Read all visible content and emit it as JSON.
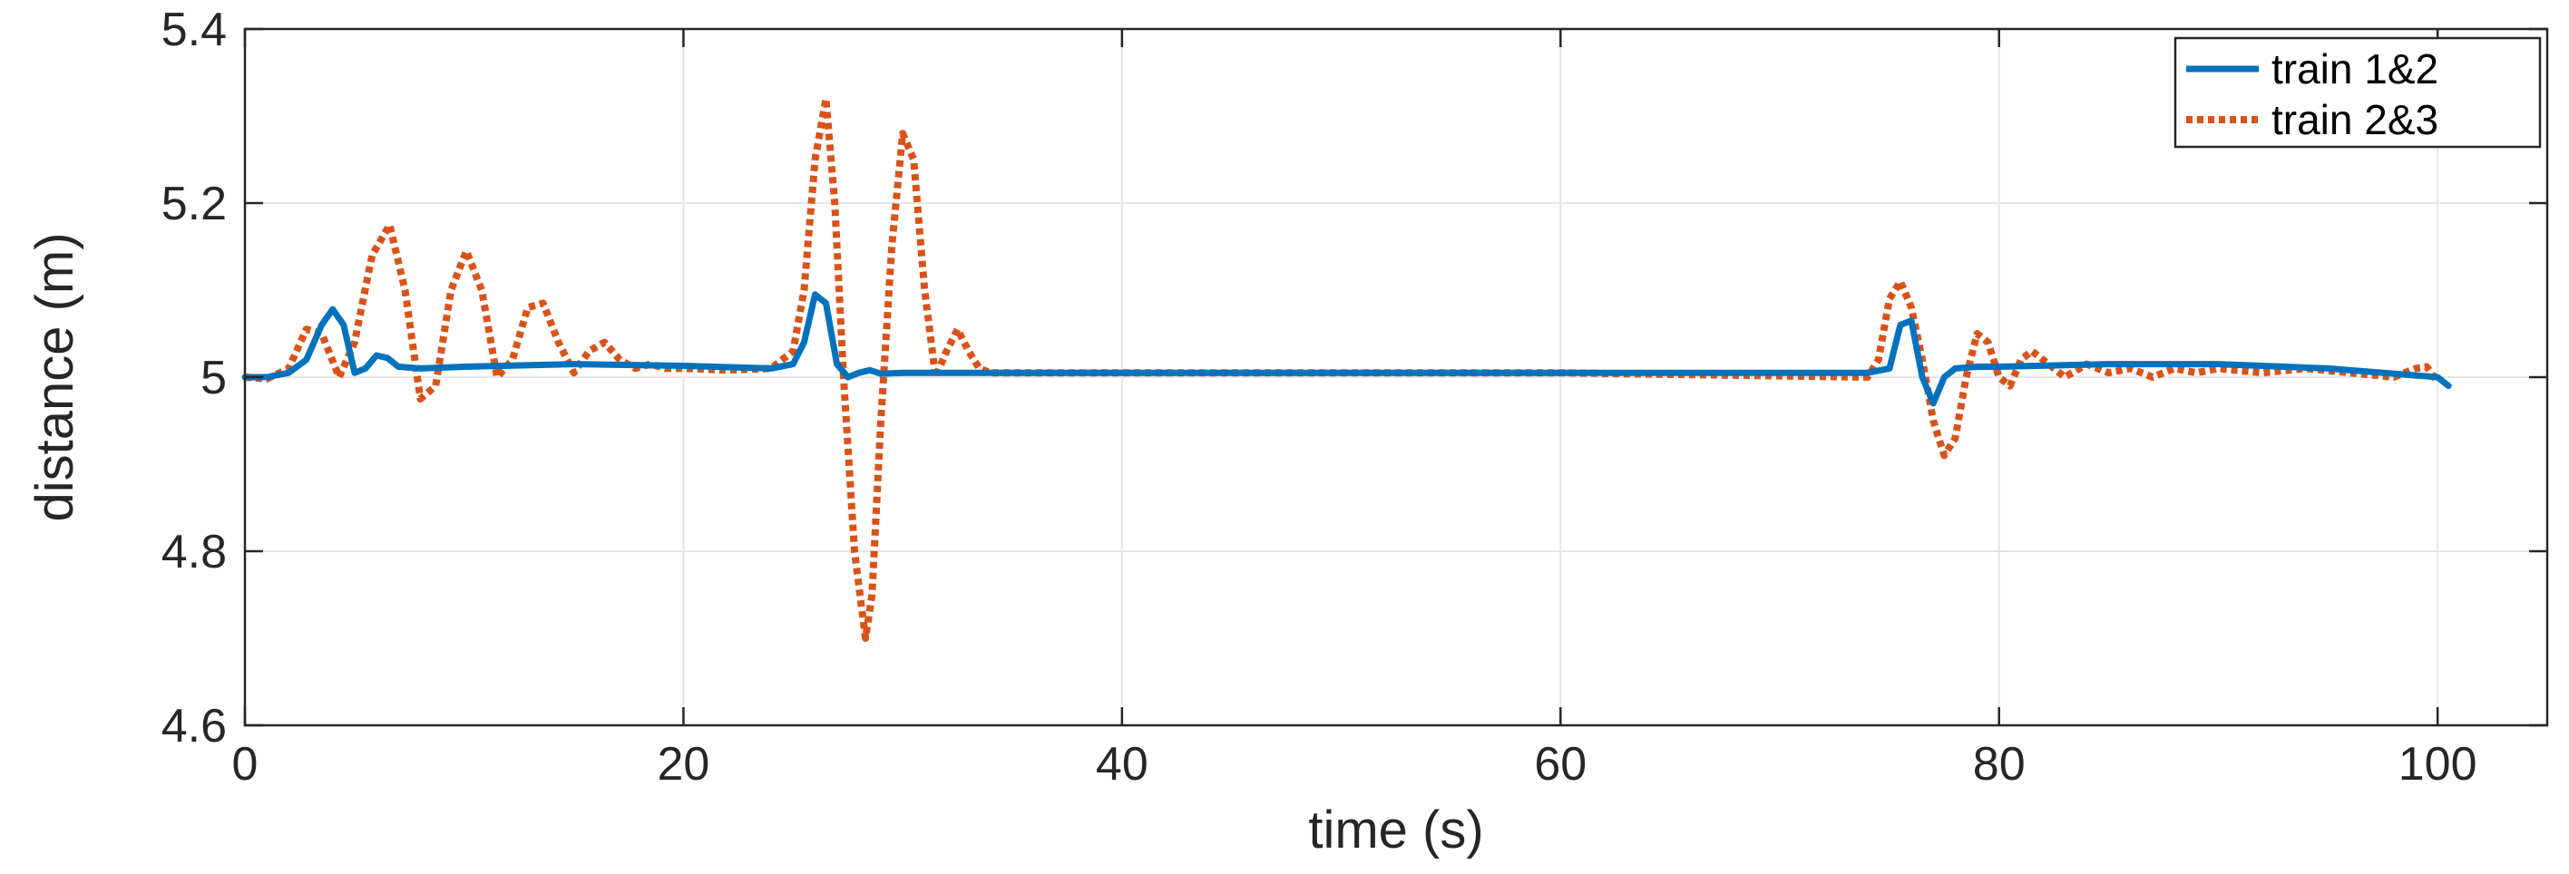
{
  "chart_data": {
    "type": "line",
    "xlabel": "time (s)",
    "ylabel": "distance (m)",
    "xlim": [
      0,
      105
    ],
    "ylim": [
      4.6,
      5.4
    ],
    "xticks": [
      0,
      20,
      40,
      60,
      80,
      100
    ],
    "yticks": [
      4.6,
      4.8,
      5,
      5.2,
      5.4
    ],
    "xtick_labels": [
      "0",
      "20",
      "40",
      "60",
      "80",
      "100"
    ],
    "ytick_labels": [
      "4.6",
      "4.8",
      "5",
      "5.2",
      "5.4"
    ],
    "grid": true,
    "legend_position": "top-right",
    "series": [
      {
        "name": "train 1&2",
        "color": "#0072BD",
        "style": "solid",
        "x": [
          0,
          1,
          2,
          2.8,
          3.5,
          4,
          4.5,
          5,
          5.5,
          6,
          6.5,
          7,
          8,
          10,
          15,
          20,
          24,
          25,
          25.5,
          26,
          26.5,
          27,
          27.5,
          28,
          28.5,
          29,
          30,
          40,
          60,
          74,
          75,
          75.5,
          76,
          76.5,
          77,
          77.5,
          78,
          79,
          80,
          85,
          90,
          95,
          99,
          100,
          100.5
        ],
        "y": [
          5.0,
          5.0,
          5.005,
          5.02,
          5.06,
          5.078,
          5.06,
          5.005,
          5.01,
          5.025,
          5.022,
          5.012,
          5.01,
          5.012,
          5.015,
          5.013,
          5.01,
          5.015,
          5.04,
          5.095,
          5.085,
          5.015,
          5.0,
          5.005,
          5.008,
          5.004,
          5.005,
          5.005,
          5.005,
          5.005,
          5.01,
          5.06,
          5.065,
          5.0,
          4.97,
          5.0,
          5.01,
          5.012,
          5.012,
          5.015,
          5.015,
          5.01,
          5.002,
          5.0,
          4.99
        ]
      },
      {
        "name": "train 2&3",
        "color": "#D95319",
        "style": "dotted",
        "x": [
          0,
          1,
          2,
          2.8,
          3.5,
          4.3,
          5,
          5.8,
          6.6,
          7.3,
          8,
          8.7,
          9.4,
          10.1,
          10.8,
          11.5,
          12.2,
          12.9,
          13.6,
          14.3,
          15,
          15.7,
          16.4,
          17.1,
          17.8,
          18.5,
          19.2,
          20,
          22,
          24,
          25,
          25.5,
          26,
          26.5,
          26.9,
          27.3,
          27.8,
          28.3,
          28.6,
          29,
          29.5,
          30,
          30.5,
          31,
          31.5,
          32,
          32.5,
          33,
          33.5,
          34,
          35,
          40,
          60,
          74,
          74.5,
          75,
          75.5,
          76,
          76.5,
          77,
          77.5,
          78,
          78.5,
          79,
          79.5,
          80,
          80.5,
          81,
          81.5,
          82,
          83,
          84,
          85,
          86,
          87,
          88,
          89,
          90,
          92,
          94,
          96,
          98,
          99,
          99.5,
          100
        ],
        "y": [
          5.0,
          4.998,
          5.01,
          5.055,
          5.05,
          5.0,
          5.04,
          5.14,
          5.175,
          5.1,
          4.975,
          4.99,
          5.1,
          5.145,
          5.1,
          5.0,
          5.02,
          5.08,
          5.085,
          5.04,
          5.005,
          5.03,
          5.04,
          5.02,
          5.01,
          5.015,
          5.01,
          5.01,
          5.008,
          5.01,
          5.03,
          5.1,
          5.25,
          5.32,
          5.2,
          5.0,
          4.8,
          4.7,
          4.75,
          4.95,
          5.15,
          5.28,
          5.25,
          5.1,
          5.0,
          5.03,
          5.055,
          5.03,
          5.01,
          5.005,
          5.005,
          5.005,
          5.005,
          5.0,
          5.02,
          5.09,
          5.11,
          5.08,
          5.02,
          4.95,
          4.91,
          4.93,
          5.0,
          5.05,
          5.04,
          5.0,
          4.99,
          5.02,
          5.03,
          5.02,
          5.0,
          5.015,
          5.005,
          5.01,
          5.0,
          5.01,
          5.005,
          5.01,
          5.005,
          5.01,
          5.005,
          5.0,
          5.01,
          5.012,
          4.995
        ]
      }
    ]
  }
}
